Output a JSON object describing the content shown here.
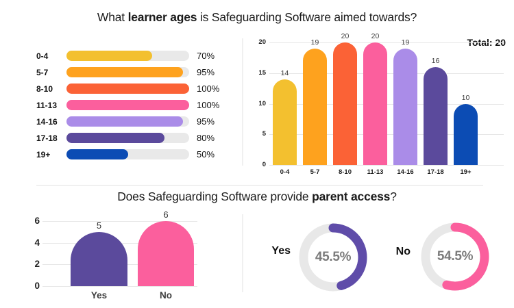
{
  "page": {
    "background": "#FFFFFF"
  },
  "questions": {
    "ages": {
      "prefix": "What ",
      "bold": "learner ages",
      "suffix": " is Safeguarding Software aimed towards?"
    },
    "parent_access": {
      "prefix": "Does Safeguarding Software provide ",
      "bold": "parent access",
      "suffix": "?"
    }
  },
  "chart_data": [
    {
      "id": "ages-percent",
      "type": "bar",
      "orientation": "horizontal",
      "categories": [
        "0-4",
        "5-7",
        "8-10",
        "11-13",
        "14-16",
        "17-18",
        "19+"
      ],
      "values": [
        70,
        95,
        100,
        100,
        95,
        80,
        50
      ],
      "value_labels": [
        "70%",
        "95%",
        "100%",
        "100%",
        "95%",
        "80%",
        "50%"
      ],
      "xlim": [
        0,
        100
      ],
      "unit": "%",
      "grid": false,
      "bar_colors": [
        "#F3C02F",
        "#FEA21E",
        "#FB6236",
        "#FB5F9D",
        "#AA8CE8",
        "#5B4A9C",
        "#0C4CB4"
      ],
      "track_color": "#E9E9E9"
    },
    {
      "id": "ages-count",
      "type": "bar",
      "orientation": "vertical",
      "categories": [
        "0-4",
        "5-7",
        "8-10",
        "11-13",
        "14-16",
        "17-18",
        "19+"
      ],
      "values": [
        14,
        19,
        20,
        20,
        19,
        16,
        10
      ],
      "annotation": "Total: 20",
      "ylim": [
        0,
        20
      ],
      "yticks": [
        0,
        5,
        10,
        15,
        20
      ],
      "grid": true,
      "bar_colors": [
        "#F3C02F",
        "#FEA21E",
        "#FB6236",
        "#FB5F9D",
        "#AA8CE8",
        "#5B4A9C",
        "#0C4CB4"
      ]
    },
    {
      "id": "parent-access-count",
      "type": "bar",
      "orientation": "vertical",
      "categories": [
        "Yes",
        "No"
      ],
      "values": [
        5,
        6
      ],
      "ylim": [
        0,
        6
      ],
      "yticks": [
        0,
        2,
        4,
        6
      ],
      "grid": true,
      "bar_colors": [
        "#5B4A9C",
        "#FB5F9D"
      ]
    },
    {
      "id": "parent-access-percent",
      "type": "pie",
      "variant": "donut",
      "slices": [
        {
          "label": "Yes",
          "value": 45.5,
          "display": "45.5%",
          "color": "#5F4CA9"
        },
        {
          "label": "No",
          "value": 54.5,
          "display": "54.5%",
          "color": "#FB5F9D"
        }
      ],
      "track_color": "#E8E8E8",
      "center_text_color": "#7B7B7B"
    }
  ]
}
